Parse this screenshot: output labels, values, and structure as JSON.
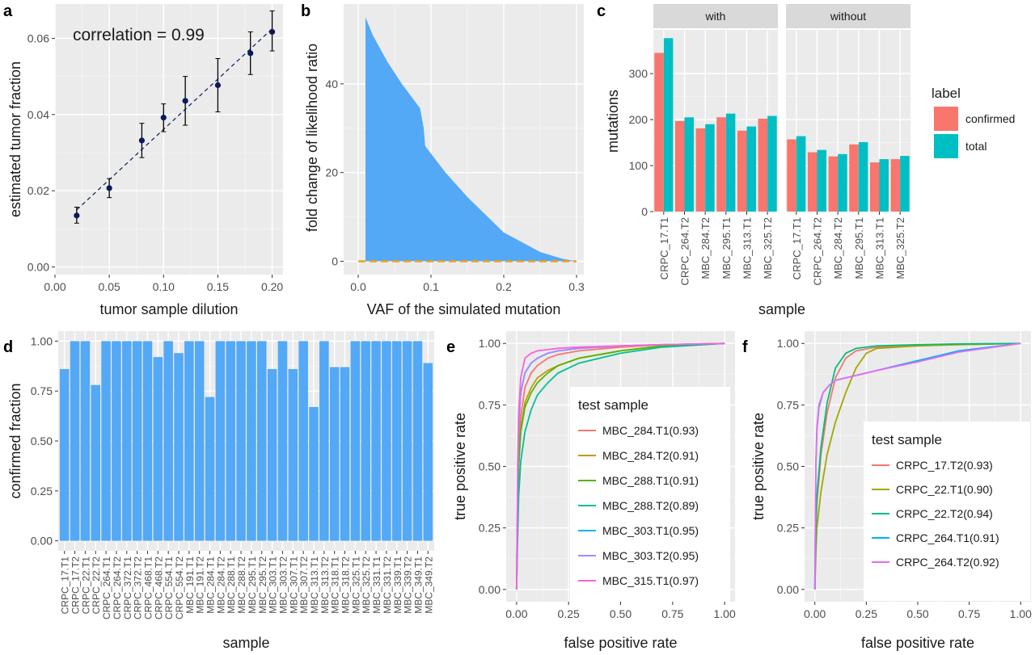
{
  "chart_data": [
    {
      "panel": "a",
      "type": "scatter",
      "xlabel": "tumor sample dilution",
      "ylabel": "estimated tumor fraction",
      "annotation": "correlation = 0.99",
      "xlim": [
        0,
        0.21
      ],
      "ylim": [
        -0.002,
        0.069
      ],
      "xticks": [
        0.0,
        0.05,
        0.1,
        0.15,
        0.2
      ],
      "xtick_labels": [
        "0.00",
        "0.05",
        "0.10",
        "0.15",
        "0.20"
      ],
      "yticks": [
        0.0,
        0.02,
        0.04,
        0.06
      ],
      "ytick_labels": [
        "0.00",
        "0.02",
        "0.04",
        "0.06"
      ],
      "x": [
        0.02,
        0.05,
        0.08,
        0.1,
        0.12,
        0.15,
        0.18,
        0.2
      ],
      "y": [
        0.0135,
        0.0207,
        0.0332,
        0.0392,
        0.0436,
        0.0477,
        0.0561,
        0.0617
      ],
      "err_low": [
        0.0115,
        0.0182,
        0.0287,
        0.0355,
        0.0372,
        0.0407,
        0.0505,
        0.0567
      ],
      "err_high": [
        0.0157,
        0.0232,
        0.0377,
        0.0428,
        0.05,
        0.0547,
        0.0617,
        0.0672
      ],
      "fit_line": {
        "x": [
          0.02,
          0.2
        ],
        "y": [
          0.015,
          0.0625
        ]
      },
      "point_color": "#0a1a5c",
      "grid": true
    },
    {
      "panel": "b",
      "type": "area",
      "xlabel": "VAF of the simulated mutation",
      "ylabel": "fold change of likelihood ratio",
      "xlim": [
        -0.02,
        0.31
      ],
      "ylim": [
        -3,
        58
      ],
      "xticks": [
        0.0,
        0.1,
        0.2,
        0.3
      ],
      "xtick_labels": [
        "0.0",
        "0.1",
        "0.2",
        "0.3"
      ],
      "yticks": [
        0,
        20,
        40
      ],
      "ytick_labels": [
        "0",
        "20",
        "40"
      ],
      "x": [
        0.01,
        0.02,
        0.04,
        0.06,
        0.085,
        0.09,
        0.092,
        0.12,
        0.15,
        0.2,
        0.25,
        0.28,
        0.3
      ],
      "y": [
        55,
        51,
        45,
        40,
        34.5,
        30,
        26,
        20,
        14.5,
        6.5,
        2.1,
        0.6,
        0
      ],
      "baseline": 0,
      "fill_color": "#53a9f5",
      "baseline_color": "#f0a020",
      "grid": true
    },
    {
      "panel": "c",
      "type": "bar",
      "xlabel": "sample",
      "ylabel": "mutations",
      "facets": [
        "with",
        "without"
      ],
      "categories": [
        "CRPC_17.T1",
        "CRPC_264.T2",
        "MBC_284.T2",
        "MBC_295.T1",
        "MBC_313.T1",
        "MBC_325.T2"
      ],
      "ylim": [
        0,
        395
      ],
      "yticks": [
        0,
        100,
        200,
        300
      ],
      "ytick_labels": [
        "0",
        "100",
        "200",
        "300"
      ],
      "legend_title": "label",
      "legend_position": "right",
      "series": [
        {
          "name": "confirmed",
          "color": "#f8766d",
          "with": [
            345,
            197,
            181,
            205,
            176,
            202
          ],
          "without": [
            157,
            129,
            120,
            146,
            107,
            114
          ]
        },
        {
          "name": "total",
          "color": "#00bfc4",
          "with": [
            377,
            205,
            190,
            213,
            185,
            208
          ],
          "without": [
            164,
            134,
            125,
            151,
            114,
            121
          ]
        }
      ]
    },
    {
      "panel": "d",
      "type": "bar",
      "xlabel": "sample",
      "ylabel": "confirmed fraction",
      "ylim": [
        -0.05,
        1.05
      ],
      "yticks": [
        0.0,
        0.25,
        0.5,
        0.75,
        1.0
      ],
      "ytick_labels": [
        "0.00",
        "0.25",
        "0.50",
        "0.75",
        "1.00"
      ],
      "categories": [
        "CRPC_17.T1",
        "CRPC_17.T2",
        "CRPC_22.T1",
        "CRPC_22.T2",
        "CRPC_264.T1",
        "CRPC_264.T2",
        "CRPC_372.T1",
        "CRPC_372.T2",
        "CRPC_468.T1",
        "CRPC_468.T2",
        "CRPC_554.T1",
        "CRPC_554.T2",
        "MBC_191.T1",
        "MBC_191.T2",
        "MBC_284.T1",
        "MBC_284.T2",
        "MBC_288.T1",
        "MBC_288.T2",
        "MBC_295.T1",
        "MBC_295.T2",
        "MBC_303.T1",
        "MBC_303.T2",
        "MBC_307.T1",
        "MBC_307.T2",
        "MBC_313.T1",
        "MBC_313.T2",
        "MBC_318.T1",
        "MBC_318.T2",
        "MBC_325.T1",
        "MBC_325.T2",
        "MBC_331.T1",
        "MBC_331.T2",
        "MBC_339.T1",
        "MBC_339.T2",
        "MBC_349.T1",
        "MBC_349.T2"
      ],
      "values": [
        0.86,
        1.0,
        1.0,
        0.78,
        1.0,
        1.0,
        1.0,
        1.0,
        1.0,
        0.92,
        1.0,
        0.94,
        1.0,
        1.0,
        0.72,
        1.0,
        1.0,
        1.0,
        1.0,
        1.0,
        0.86,
        1.0,
        0.86,
        1.0,
        0.67,
        1.0,
        0.87,
        0.87,
        1.0,
        1.0,
        1.0,
        1.0,
        1.0,
        1.0,
        1.0,
        0.89
      ],
      "bar_color": "#53a9f5",
      "grid": true
    },
    {
      "panel": "e",
      "type": "line",
      "xlabel": "false positive rate",
      "ylabel": "true positive rate",
      "xlim": [
        -0.05,
        1.05
      ],
      "ylim": [
        -0.05,
        1.05
      ],
      "xticks": [
        0.0,
        0.25,
        0.5,
        0.75,
        1.0
      ],
      "xtick_labels": [
        "0.00",
        "0.25",
        "0.50",
        "0.75",
        "1.00"
      ],
      "yticks": [
        0.0,
        0.25,
        0.5,
        0.75,
        1.0
      ],
      "ytick_labels": [
        "0.00",
        "0.25",
        "0.50",
        "0.75",
        "1.00"
      ],
      "legend_title": "test sample",
      "legend_position": "center-right",
      "series": [
        {
          "name": "MBC_284.T1(0.93)",
          "color": "#f8766d",
          "x": [
            0,
            0.005,
            0.01,
            0.02,
            0.04,
            0.07,
            0.1,
            0.15,
            0.2,
            0.3,
            0.5,
            0.7,
            1
          ],
          "y": [
            0,
            0.35,
            0.55,
            0.7,
            0.82,
            0.88,
            0.91,
            0.94,
            0.955,
            0.97,
            0.985,
            0.995,
            1
          ]
        },
        {
          "name": "MBC_284.T2(0.91)",
          "color": "#c49a00",
          "x": [
            0,
            0.005,
            0.01,
            0.02,
            0.04,
            0.07,
            0.1,
            0.15,
            0.2,
            0.3,
            0.5,
            0.7,
            1
          ],
          "y": [
            0,
            0.3,
            0.5,
            0.65,
            0.76,
            0.82,
            0.86,
            0.89,
            0.91,
            0.94,
            0.97,
            0.99,
            1
          ]
        },
        {
          "name": "MBC_288.T1(0.91)",
          "color": "#53b400",
          "x": [
            0,
            0.005,
            0.01,
            0.02,
            0.04,
            0.07,
            0.1,
            0.15,
            0.2,
            0.3,
            0.5,
            0.7,
            1
          ],
          "y": [
            0,
            0.3,
            0.5,
            0.64,
            0.74,
            0.8,
            0.84,
            0.88,
            0.91,
            0.94,
            0.97,
            0.99,
            1
          ]
        },
        {
          "name": "MBC_288.T2(0.89)",
          "color": "#00c094",
          "x": [
            0,
            0.005,
            0.01,
            0.02,
            0.04,
            0.07,
            0.1,
            0.15,
            0.2,
            0.3,
            0.5,
            0.7,
            1
          ],
          "y": [
            0,
            0.2,
            0.38,
            0.52,
            0.64,
            0.73,
            0.79,
            0.84,
            0.88,
            0.92,
            0.96,
            0.985,
            1
          ]
        },
        {
          "name": "MBC_303.T1(0.95)",
          "color": "#00b6eb",
          "x": [
            0,
            0.005,
            0.01,
            0.02,
            0.04,
            0.07,
            0.1,
            0.15,
            0.2,
            0.3,
            0.5,
            0.7,
            1
          ],
          "y": [
            0,
            0.4,
            0.65,
            0.8,
            0.88,
            0.92,
            0.94,
            0.96,
            0.97,
            0.98,
            0.99,
            0.995,
            1
          ]
        },
        {
          "name": "MBC_303.T2(0.95)",
          "color": "#a58aff",
          "x": [
            0,
            0.005,
            0.01,
            0.02,
            0.04,
            0.07,
            0.1,
            0.15,
            0.2,
            0.3,
            0.5,
            0.7,
            1
          ],
          "y": [
            0,
            0.42,
            0.66,
            0.8,
            0.88,
            0.92,
            0.94,
            0.96,
            0.97,
            0.98,
            0.99,
            0.995,
            1
          ]
        },
        {
          "name": "MBC_315.T1(0.97)",
          "color": "#fb61d7",
          "x": [
            0,
            0.005,
            0.01,
            0.02,
            0.04,
            0.07,
            0.1,
            0.15,
            0.2,
            0.3,
            0.5,
            0.7,
            1
          ],
          "y": [
            0,
            0.5,
            0.72,
            0.86,
            0.94,
            0.96,
            0.97,
            0.975,
            0.98,
            0.985,
            0.99,
            0.995,
            1
          ]
        }
      ],
      "grid": true
    },
    {
      "panel": "f",
      "type": "line",
      "xlabel": "false positive rate",
      "ylabel": "true positive rate",
      "xlim": [
        -0.05,
        1.05
      ],
      "ylim": [
        -0.05,
        1.05
      ],
      "xticks": [
        0.0,
        0.25,
        0.5,
        0.75,
        1.0
      ],
      "xtick_labels": [
        "0.00",
        "0.25",
        "0.50",
        "0.75",
        "1.00"
      ],
      "yticks": [
        0.0,
        0.25,
        0.5,
        0.75,
        1.0
      ],
      "ytick_labels": [
        "0.00",
        "0.25",
        "0.50",
        "0.75",
        "1.00"
      ],
      "legend_title": "test sample",
      "legend_position": "bottom-right",
      "series": [
        {
          "name": "CRPC_17.T2(0.93)",
          "color": "#f8766d",
          "x": [
            0,
            0.005,
            0.01,
            0.03,
            0.06,
            0.1,
            0.15,
            0.2,
            0.3,
            0.5,
            0.7,
            1
          ],
          "y": [
            0,
            0.22,
            0.35,
            0.55,
            0.72,
            0.86,
            0.94,
            0.97,
            0.985,
            0.99,
            0.995,
            1
          ]
        },
        {
          "name": "CRPC_22.T1(0.90)",
          "color": "#a3a500",
          "x": [
            0,
            0.005,
            0.01,
            0.03,
            0.06,
            0.1,
            0.15,
            0.2,
            0.25,
            0.3,
            0.5,
            0.7,
            1
          ],
          "y": [
            0,
            0.15,
            0.25,
            0.4,
            0.55,
            0.68,
            0.8,
            0.9,
            0.96,
            0.98,
            0.99,
            0.995,
            1
          ]
        },
        {
          "name": "CRPC_22.T2(0.94)",
          "color": "#00bf7d",
          "x": [
            0,
            0.005,
            0.01,
            0.03,
            0.06,
            0.1,
            0.15,
            0.2,
            0.3,
            0.5,
            0.7,
            1
          ],
          "y": [
            0,
            0.25,
            0.38,
            0.58,
            0.76,
            0.9,
            0.96,
            0.98,
            0.99,
            0.995,
            0.998,
            1
          ]
        },
        {
          "name": "CRPC_264.T1(0.91)",
          "color": "#00b0f6",
          "x": [
            0,
            0.005,
            0.01,
            0.02,
            0.04,
            0.07,
            0.1,
            0.15,
            0.2,
            0.3,
            0.5,
            0.7,
            1
          ],
          "y": [
            0,
            0.5,
            0.65,
            0.74,
            0.8,
            0.83,
            0.85,
            0.86,
            0.87,
            0.89,
            0.93,
            0.97,
            1
          ]
        },
        {
          "name": "CRPC_264.T2(0.92)",
          "color": "#e76bf3",
          "x": [
            0,
            0.005,
            0.01,
            0.02,
            0.04,
            0.07,
            0.1,
            0.15,
            0.2,
            0.3,
            0.5,
            0.7,
            1
          ],
          "y": [
            0,
            0.52,
            0.66,
            0.75,
            0.8,
            0.83,
            0.85,
            0.86,
            0.87,
            0.89,
            0.925,
            0.965,
            1
          ]
        }
      ],
      "grid": true
    }
  ]
}
